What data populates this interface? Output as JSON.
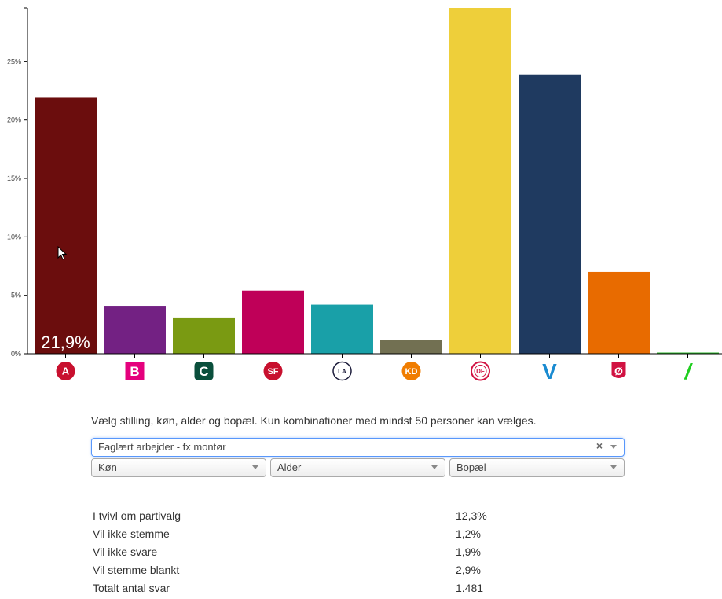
{
  "chart_data": {
    "type": "bar",
    "categories": [
      "A",
      "B",
      "C",
      "SF",
      "LA",
      "KD",
      "DF",
      "V",
      "Ø",
      "/"
    ],
    "values": [
      21.9,
      4.1,
      3.1,
      5.4,
      4.2,
      1.2,
      29.6,
      23.9,
      7.0,
      0.1
    ],
    "colors": [
      "#6b0d0d",
      "#732183",
      "#7a9a12",
      "#bf0058",
      "#19a0a8",
      "#727052",
      "#eecf3a",
      "#1f3a60",
      "#e86b00",
      "#2bb52b"
    ],
    "ylim": [
      0,
      29.6
    ],
    "yticks": [
      {
        "value": 0,
        "label": "0%"
      },
      {
        "value": 5,
        "label": "5%"
      },
      {
        "value": 10,
        "label": "10%"
      },
      {
        "value": 15,
        "label": "15%"
      },
      {
        "value": 20,
        "label": "20%"
      },
      {
        "value": 25,
        "label": "25%"
      }
    ],
    "highlight_label": "21,9%",
    "highlight_index": 0,
    "logos": [
      {
        "text": "A",
        "bg": "#c8102e",
        "fg": "#ffffff",
        "shape": "circle"
      },
      {
        "text": "B",
        "bg": "#e5007d",
        "fg": "#ffffff",
        "shape": "square"
      },
      {
        "text": "C",
        "bg": "#0a4f3c",
        "fg": "#ffffff",
        "shape": "rounded"
      },
      {
        "text": "SF",
        "bg": "#c8102e",
        "fg": "#ffffff",
        "shape": "circle"
      },
      {
        "text": "LA",
        "bg": "#ffffff",
        "fg": "#1b1b3a",
        "shape": "ring"
      },
      {
        "text": "KD",
        "bg": "#f07d00",
        "fg": "#ffffff",
        "shape": "circle"
      },
      {
        "text": "DF",
        "bg": "#ffffff",
        "fg": "#d11242",
        "shape": "ring-red"
      },
      {
        "text": "V",
        "bg": "none",
        "fg": "#1a8bd1",
        "shape": "letter"
      },
      {
        "text": "Ø",
        "bg": "#d11242",
        "fg": "#ffffff",
        "shape": "shield"
      },
      {
        "text": "/",
        "bg": "none",
        "fg": "#1fce1f",
        "shape": "slash"
      }
    ]
  },
  "controls": {
    "instruction": "Vælg stilling, køn, alder og bopæl. Kun kombinationer med mindst 50 personer kan vælges.",
    "occupation": "Faglært arbejder - fx montør",
    "clear_symbol": "×",
    "gender": "Køn",
    "age": "Alder",
    "residence": "Bopæl"
  },
  "stats": [
    {
      "label": "I tvivl om partivalg",
      "value": "12,3%"
    },
    {
      "label": "Vil ikke stemme",
      "value": "1,2%"
    },
    {
      "label": "Vil ikke svare",
      "value": "1,9%"
    },
    {
      "label": "Vil stemme blankt",
      "value": "2,9%"
    },
    {
      "label": "Totalt antal svar",
      "value": "1.481"
    }
  ]
}
